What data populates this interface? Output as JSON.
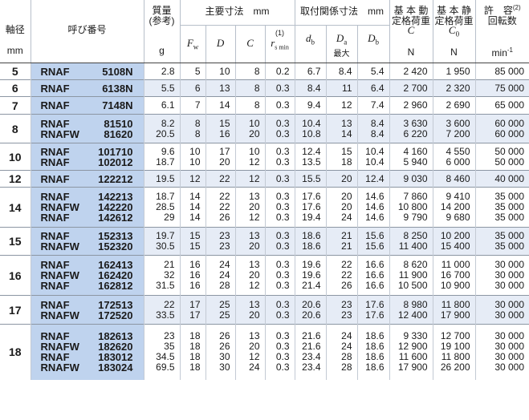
{
  "header": {
    "shaft_dia": "軸径",
    "shaft_unit": "mm",
    "designation": "呼び番号",
    "mass_title": "質量",
    "mass_sub": "(参考)",
    "mass_unit": "g",
    "main_dims": "主要寸法　mm",
    "mount_dims": "取付関係寸法　mm",
    "fw": "F",
    "fw_sub": "w",
    "d": "D",
    "c": "C",
    "rs": "r",
    "rs_sub": "s min",
    "rs_note": "(1)",
    "db": "d",
    "db_sub": "b",
    "da": "D",
    "da_sub": "a",
    "da_note": "最大",
    "Db": "D",
    "Db_sub": "b",
    "dyn_title1": "基 本 動",
    "dyn_title2": "定格荷重",
    "dyn_sym": "C",
    "dyn_unit": "N",
    "stat_title1": "基 本 静",
    "stat_title2": "定格荷重",
    "stat_sym": "C",
    "stat_sym_sub": "0",
    "stat_unit": "N",
    "speed_title1": "許　容",
    "speed_note": "(2)",
    "speed_title2": "回転数",
    "speed_unit": "min",
    "speed_unit_sup": "-1"
  },
  "groups": [
    {
      "size": "5",
      "rows": [
        [
          "RNAF",
          "5108N",
          "2.8",
          "5",
          "10",
          "8",
          "0.2",
          "6.7",
          "8.4",
          "5.4",
          "2 420",
          "1 950",
          "85 000"
        ]
      ]
    },
    {
      "size": "6",
      "rows": [
        [
          "RNAF",
          "6138N",
          "5.5",
          "6",
          "13",
          "8",
          "0.3",
          "8.4",
          "11",
          "6.4",
          "2 700",
          "2 320",
          "75 000"
        ]
      ]
    },
    {
      "size": "7",
      "rows": [
        [
          "RNAF",
          "7148N",
          "6.1",
          "7",
          "14",
          "8",
          "0.3",
          "9.4",
          "12",
          "7.4",
          "2 960",
          "2 690",
          "65 000"
        ]
      ]
    },
    {
      "size": "8",
      "rows": [
        [
          "RNAF",
          "81510",
          "8.2",
          "8",
          "15",
          "10",
          "0.3",
          "10.4",
          "13",
          "8.4",
          "3 630",
          "3 600",
          "60 000"
        ],
        [
          "RNAFW",
          "81620",
          "20.5",
          "8",
          "16",
          "20",
          "0.3",
          "10.8",
          "14",
          "8.4",
          "6 220",
          "7 200",
          "60 000"
        ]
      ]
    },
    {
      "size": "10",
      "rows": [
        [
          "RNAF",
          "101710",
          "9.6",
          "10",
          "17",
          "10",
          "0.3",
          "12.4",
          "15",
          "10.4",
          "4 160",
          "4 550",
          "50 000"
        ],
        [
          "RNAF",
          "102012",
          "18.7",
          "10",
          "20",
          "12",
          "0.3",
          "13.5",
          "18",
          "10.4",
          "5 940",
          "6 000",
          "50 000"
        ]
      ]
    },
    {
      "size": "12",
      "rows": [
        [
          "RNAF",
          "122212",
          "19.5",
          "12",
          "22",
          "12",
          "0.3",
          "15.5",
          "20",
          "12.4",
          "9 030",
          "8 460",
          "40 000"
        ]
      ]
    },
    {
      "size": "14",
      "rows": [
        [
          "RNAF",
          "142213",
          "18.7",
          "14",
          "22",
          "13",
          "0.3",
          "17.6",
          "20",
          "14.6",
          "7 860",
          "9 410",
          "35 000"
        ],
        [
          "RNAFW",
          "142220",
          "28.5",
          "14",
          "22",
          "20",
          "0.3",
          "17.6",
          "20",
          "14.6",
          "10 800",
          "14 200",
          "35 000"
        ],
        [
          "RNAF",
          "142612",
          "29",
          "14",
          "26",
          "12",
          "0.3",
          "19.4",
          "24",
          "14.6",
          "9 790",
          "9 680",
          "35 000"
        ]
      ]
    },
    {
      "size": "15",
      "rows": [
        [
          "RNAF",
          "152313",
          "19.7",
          "15",
          "23",
          "13",
          "0.3",
          "18.6",
          "21",
          "15.6",
          "8 250",
          "10 200",
          "35 000"
        ],
        [
          "RNAFW",
          "152320",
          "30.5",
          "15",
          "23",
          "20",
          "0.3",
          "18.6",
          "21",
          "15.6",
          "11 400",
          "15 400",
          "35 000"
        ]
      ]
    },
    {
      "size": "16",
      "rows": [
        [
          "RNAF",
          "162413",
          "21",
          "16",
          "24",
          "13",
          "0.3",
          "19.6",
          "22",
          "16.6",
          "8 620",
          "11 000",
          "30 000"
        ],
        [
          "RNAFW",
          "162420",
          "32",
          "16",
          "24",
          "20",
          "0.3",
          "19.6",
          "22",
          "16.6",
          "11 900",
          "16 700",
          "30 000"
        ],
        [
          "RNAF",
          "162812",
          "31.5",
          "16",
          "28",
          "12",
          "0.3",
          "21.4",
          "26",
          "16.6",
          "10 500",
          "10 900",
          "30 000"
        ]
      ]
    },
    {
      "size": "17",
      "rows": [
        [
          "RNAF",
          "172513",
          "22",
          "17",
          "25",
          "13",
          "0.3",
          "20.6",
          "23",
          "17.6",
          "8 980",
          "11 800",
          "30 000"
        ],
        [
          "RNAFW",
          "172520",
          "33.5",
          "17",
          "25",
          "20",
          "0.3",
          "20.6",
          "23",
          "17.6",
          "12 400",
          "17 900",
          "30 000"
        ]
      ]
    },
    {
      "size": "18",
      "rows": [
        [
          "RNAF",
          "182613",
          "23",
          "18",
          "26",
          "13",
          "0.3",
          "21.6",
          "24",
          "18.6",
          "9 330",
          "12 700",
          "30 000"
        ],
        [
          "RNAFW",
          "182620",
          "35",
          "18",
          "26",
          "20",
          "0.3",
          "21.6",
          "24",
          "18.6",
          "12 900",
          "19 100",
          "30 000"
        ],
        [
          "RNAF",
          "183012",
          "34.5",
          "18",
          "30",
          "12",
          "0.3",
          "23.4",
          "28",
          "18.6",
          "11 600",
          "11 800",
          "30 000"
        ],
        [
          "RNAFW",
          "183024",
          "69.5",
          "18",
          "30",
          "24",
          "0.3",
          "23.4",
          "28",
          "18.6",
          "17 900",
          "26 200",
          "30 000"
        ]
      ]
    }
  ],
  "colors": {
    "designation_bg": "#bfd3ee",
    "band_bg": "#e6ecf6"
  }
}
